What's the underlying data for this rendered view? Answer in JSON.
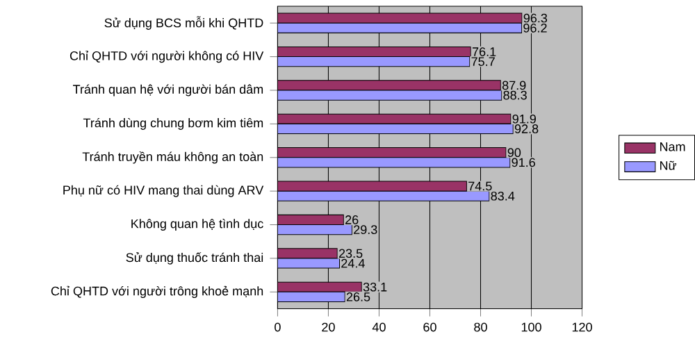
{
  "chart_data": {
    "type": "bar",
    "orientation": "horizontal",
    "categories": [
      "Sử dụng BCS mỗi khi QHTD",
      "Chỉ QHTD với người không có HIV",
      "Tránh quan hệ với người bán dâm",
      "Tránh dùng chung bơm kim tiêm",
      "Tránh truyền máu không an toàn",
      "Phụ nữ có HIV mang thai dùng ARV",
      "Không quan hệ tình dục",
      "Sử dụng thuốc tránh thai",
      "Chỉ QHTD với người trông khoẻ mạnh"
    ],
    "series": [
      {
        "name": "Nam",
        "color": "#993366",
        "values": [
          96.3,
          76.1,
          87.9,
          91.9,
          90,
          74.5,
          26,
          23.5,
          33.1
        ]
      },
      {
        "name": "Nữ",
        "color": "#9999ff",
        "values": [
          96.2,
          75.7,
          88.3,
          92.8,
          91.6,
          83.4,
          29.3,
          24.4,
          26.5
        ]
      }
    ],
    "xlim": [
      0,
      120
    ],
    "xticks": [
      0,
      20,
      40,
      60,
      80,
      100,
      120
    ],
    "grid": "x",
    "legend": "right",
    "data_labels": true
  }
}
